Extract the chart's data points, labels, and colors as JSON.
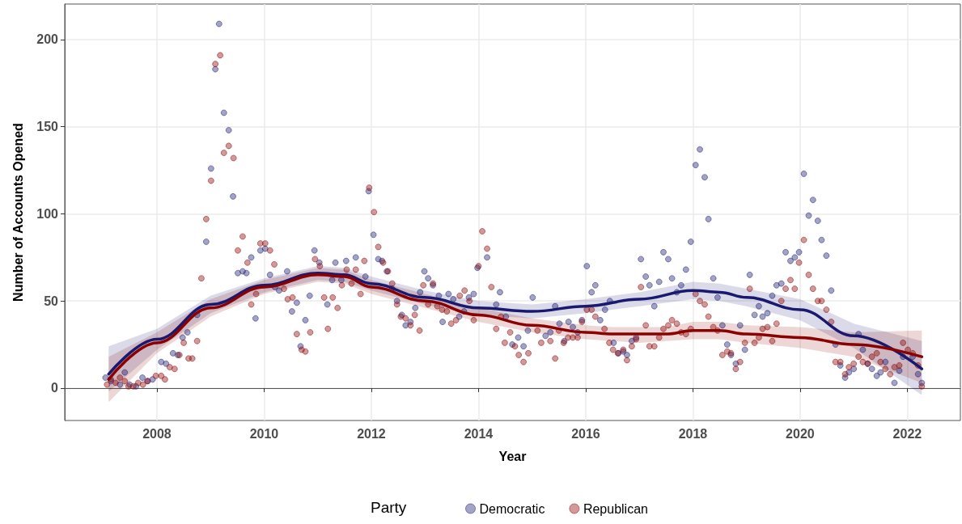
{
  "chart_data": {
    "type": "scatter",
    "xlabel": "Year",
    "ylabel": "Number of Accounts Opened",
    "legend_title": "Party",
    "legend": "bottom",
    "grid": true,
    "marker": "circle",
    "xlim": [
      2006.28,
      2022.99
    ],
    "xticks": [
      2008,
      2010,
      2012,
      2014,
      2016,
      2018,
      2020,
      2022
    ],
    "ylim": [
      -18.6,
      220.4
    ],
    "yticks": [
      0,
      50,
      100,
      150,
      200
    ],
    "series": [
      {
        "name": "Democratic",
        "color": "#191970",
        "x": [
          2007.04,
          2007.14,
          2007.31,
          2007.4,
          2007.49,
          2007.61,
          2007.73,
          2007.83,
          2007.92,
          2008.08,
          2008.17,
          2008.3,
          2008.39,
          2008.48,
          2008.57,
          2008.75,
          2008.92,
          2009.01,
          2009.09,
          2009.16,
          2009.25,
          2009.34,
          2009.42,
          2009.51,
          2009.6,
          2009.67,
          2009.76,
          2009.84,
          2009.93,
          2010.02,
          2010.11,
          2010.2,
          2010.28,
          2010.43,
          2010.52,
          2010.61,
          2010.68,
          2010.77,
          2010.85,
          2010.94,
          2011.03,
          2011.18,
          2011.27,
          2011.33,
          2011.44,
          2011.53,
          2011.71,
          2011.89,
          2011.95,
          2012.04,
          2012.13,
          2012.2,
          2012.29,
          2012.39,
          2012.48,
          2012.57,
          2012.64,
          2012.73,
          2012.82,
          2012.91,
          2012.99,
          2013.06,
          2013.15,
          2013.26,
          2013.33,
          2013.44,
          2013.53,
          2013.64,
          2013.73,
          2013.82,
          2013.91,
          2013.98,
          2014.16,
          2014.33,
          2014.4,
          2014.51,
          2014.63,
          2014.74,
          2014.84,
          2014.92,
          2015.01,
          2015.25,
          2015.34,
          2015.43,
          2015.51,
          2015.6,
          2015.68,
          2015.76,
          2015.85,
          2015.93,
          2016.02,
          2016.11,
          2016.18,
          2016.27,
          2016.36,
          2016.45,
          2016.52,
          2016.61,
          2016.7,
          2016.77,
          2016.86,
          2016.94,
          2017.03,
          2017.12,
          2017.19,
          2017.28,
          2017.37,
          2017.45,
          2017.54,
          2017.61,
          2017.7,
          2017.78,
          2017.87,
          2017.96,
          2018.05,
          2018.13,
          2018.22,
          2018.29,
          2018.38,
          2018.46,
          2018.55,
          2018.64,
          2018.71,
          2018.8,
          2018.88,
          2018.97,
          2019.06,
          2019.15,
          2019.23,
          2019.3,
          2019.39,
          2019.48,
          2019.56,
          2019.65,
          2019.73,
          2019.82,
          2019.9,
          2019.98,
          2020.07,
          2020.16,
          2020.24,
          2020.33,
          2020.4,
          2020.49,
          2020.58,
          2020.66,
          2020.75,
          2020.84,
          2020.91,
          2021.0,
          2021.09,
          2021.17,
          2021.26,
          2021.34,
          2021.43,
          2021.5,
          2021.59,
          2021.76,
          2021.85,
          2021.92,
          2022.1,
          2022.2,
          2022.27
        ],
        "values": [
          6,
          4,
          2,
          9,
          2,
          1,
          6,
          4,
          5,
          15,
          14,
          20,
          19,
          29,
          32,
          42,
          84,
          126,
          183,
          209,
          158,
          148,
          110,
          66,
          67,
          66,
          75,
          40,
          79,
          80,
          65,
          58,
          56,
          67,
          44,
          49,
          24,
          39,
          53,
          79,
          72,
          48,
          62,
          72,
          62,
          73,
          75,
          64,
          113,
          88,
          74,
          73,
          67,
          57,
          50,
          42,
          36,
          38,
          46,
          55,
          67,
          63,
          59,
          53,
          38,
          54,
          51,
          41,
          44,
          52,
          54,
          69,
          75,
          48,
          55,
          41,
          25,
          29,
          24,
          33,
          52,
          30,
          32,
          47,
          37,
          27,
          38,
          35,
          32,
          39,
          70,
          55,
          59,
          39,
          45,
          50,
          26,
          20,
          21,
          19,
          27,
          29,
          74,
          64,
          59,
          47,
          61,
          78,
          74,
          63,
          55,
          59,
          68,
          84,
          128,
          137,
          121,
          97,
          63,
          52,
          36,
          25,
          19,
          14,
          36,
          22,
          65,
          42,
          47,
          41,
          43,
          53,
          59,
          60,
          78,
          73,
          75,
          78,
          123,
          99,
          108,
          96,
          85,
          76,
          56,
          25,
          13,
          6,
          9,
          11,
          31,
          22,
          14,
          11,
          7,
          9,
          15,
          3,
          10,
          18,
          18,
          8,
          3
        ]
      },
      {
        "name": "Republican",
        "color": "#8b0000",
        "x": [
          2007.07,
          2007.14,
          2007.23,
          2007.31,
          2007.4,
          2007.47,
          2007.56,
          2007.65,
          2007.74,
          2007.82,
          2007.98,
          2008.08,
          2008.15,
          2008.24,
          2008.33,
          2008.42,
          2008.5,
          2008.59,
          2008.66,
          2008.75,
          2008.83,
          2008.92,
          2009.01,
          2009.09,
          2009.18,
          2009.25,
          2009.34,
          2009.43,
          2009.51,
          2009.6,
          2009.69,
          2009.76,
          2009.85,
          2009.93,
          2010.02,
          2010.11,
          2010.19,
          2010.37,
          2010.44,
          2010.53,
          2010.61,
          2010.7,
          2010.77,
          2010.86,
          2010.95,
          2011.04,
          2011.12,
          2011.19,
          2011.28,
          2011.37,
          2011.45,
          2011.54,
          2011.63,
          2011.71,
          2011.8,
          2011.87,
          2011.96,
          2012.05,
          2012.13,
          2012.22,
          2012.31,
          2012.39,
          2012.48,
          2012.55,
          2012.64,
          2012.73,
          2012.81,
          2012.9,
          2012.97,
          2013.06,
          2013.15,
          2013.23,
          2013.32,
          2013.41,
          2013.49,
          2013.58,
          2013.65,
          2013.74,
          2013.83,
          2013.91,
          2014.0,
          2014.07,
          2014.16,
          2014.24,
          2014.33,
          2014.42,
          2014.49,
          2014.59,
          2014.68,
          2014.75,
          2014.84,
          2014.93,
          2015.1,
          2015.17,
          2015.34,
          2015.43,
          2015.5,
          2015.59,
          2015.67,
          2015.76,
          2015.85,
          2015.93,
          2016.02,
          2016.11,
          2016.18,
          2016.35,
          2016.44,
          2016.51,
          2016.6,
          2016.7,
          2016.77,
          2016.86,
          2016.94,
          2017.03,
          2017.12,
          2017.19,
          2017.28,
          2017.37,
          2017.45,
          2017.54,
          2017.61,
          2017.7,
          2017.78,
          2017.87,
          2017.96,
          2018.05,
          2018.13,
          2018.22,
          2018.29,
          2018.38,
          2018.46,
          2018.55,
          2018.64,
          2018.71,
          2018.8,
          2018.88,
          2018.97,
          2019.06,
          2019.15,
          2019.23,
          2019.3,
          2019.39,
          2019.48,
          2019.56,
          2019.65,
          2019.73,
          2019.82,
          2019.9,
          2019.98,
          2020.07,
          2020.16,
          2020.24,
          2020.33,
          2020.4,
          2020.49,
          2020.58,
          2020.66,
          2020.75,
          2020.84,
          2020.91,
          2021.0,
          2021.09,
          2021.17,
          2021.26,
          2021.34,
          2021.43,
          2021.5,
          2021.59,
          2021.68,
          2021.76,
          2021.85,
          2021.92,
          2022.01,
          2022.1,
          2022.2,
          2022.27
        ],
        "values": [
          2,
          5,
          3,
          6,
          4,
          1,
          1,
          3,
          2,
          4,
          7,
          7,
          5,
          12,
          11,
          19,
          26,
          17,
          17,
          27,
          63,
          97,
          119,
          186,
          191,
          135,
          139,
          132,
          79,
          87,
          72,
          48,
          54,
          83,
          83,
          79,
          71,
          57,
          51,
          52,
          31,
          22,
          21,
          32,
          74,
          70,
          52,
          34,
          52,
          46,
          59,
          68,
          60,
          68,
          54,
          73,
          115,
          101,
          81,
          72,
          67,
          60,
          48,
          41,
          40,
          36,
          42,
          33,
          59,
          48,
          60,
          47,
          45,
          44,
          37,
          39,
          53,
          56,
          50,
          39,
          70,
          90,
          80,
          58,
          34,
          41,
          26,
          32,
          24,
          19,
          15,
          20,
          33,
          26,
          27,
          17,
          33,
          26,
          29,
          29,
          29,
          38,
          45,
          45,
          41,
          34,
          26,
          22,
          20,
          22,
          16,
          24,
          28,
          58,
          36,
          24,
          24,
          29,
          34,
          36,
          39,
          37,
          32,
          31,
          34,
          54,
          50,
          48,
          41,
          35,
          33,
          19,
          21,
          20,
          11,
          15,
          26,
          57,
          26,
          29,
          34,
          35,
          27,
          37,
          50,
          57,
          62,
          57,
          72,
          85,
          65,
          57,
          50,
          50,
          45,
          38,
          15,
          15,
          8,
          12,
          14,
          18,
          15,
          14,
          18,
          20,
          15,
          11,
          8,
          12,
          13,
          26,
          22,
          20,
          13,
          1
        ]
      },
      {
        "type": "line",
        "marker": "none",
        "color": "#191970",
        "x": [
          2007.1,
          2008,
          2009,
          2010,
          2011,
          2011.5,
          2012,
          2013,
          2014,
          2015,
          2016,
          2017,
          2018,
          2018.5,
          2019,
          2020,
          2021,
          2022.27
        ],
        "values": [
          8,
          28,
          48,
          59,
          66,
          65,
          60,
          52,
          46,
          44,
          47,
          51,
          56,
          55,
          52,
          45,
          30,
          11
        ],
        "lower": [
          -2,
          22,
          43,
          55,
          62,
          61,
          56,
          48,
          42,
          40,
          43,
          47,
          51,
          50,
          47,
          39,
          23,
          -4
        ],
        "upper": [
          24,
          34,
          53,
          63,
          70,
          69,
          64,
          56,
          50,
          48,
          51,
          55,
          61,
          60,
          57,
          51,
          37,
          27
        ]
      },
      {
        "type": "line",
        "marker": "none",
        "color": "#8b0000",
        "x": [
          2007.1,
          2008,
          2009,
          2010,
          2011,
          2011.5,
          2012,
          2013,
          2014,
          2015,
          2016,
          2016.5,
          2017,
          2017.5,
          2018,
          2018.5,
          2019,
          2020,
          2021,
          2022.27
        ],
        "values": [
          5,
          26,
          46,
          58,
          65,
          64,
          58,
          50,
          42,
          36,
          32,
          31,
          31,
          31,
          33,
          33,
          31,
          29,
          25,
          18
        ],
        "lower": [
          -8,
          20,
          41,
          54,
          61,
          60,
          54,
          46,
          38,
          32,
          28,
          27,
          26,
          27,
          28,
          28,
          26,
          23,
          18,
          3
        ],
        "upper": [
          18,
          32,
          51,
          62,
          69,
          68,
          62,
          54,
          46,
          40,
          36,
          35,
          35,
          35,
          38,
          38,
          36,
          35,
          32,
          33
        ]
      }
    ]
  }
}
